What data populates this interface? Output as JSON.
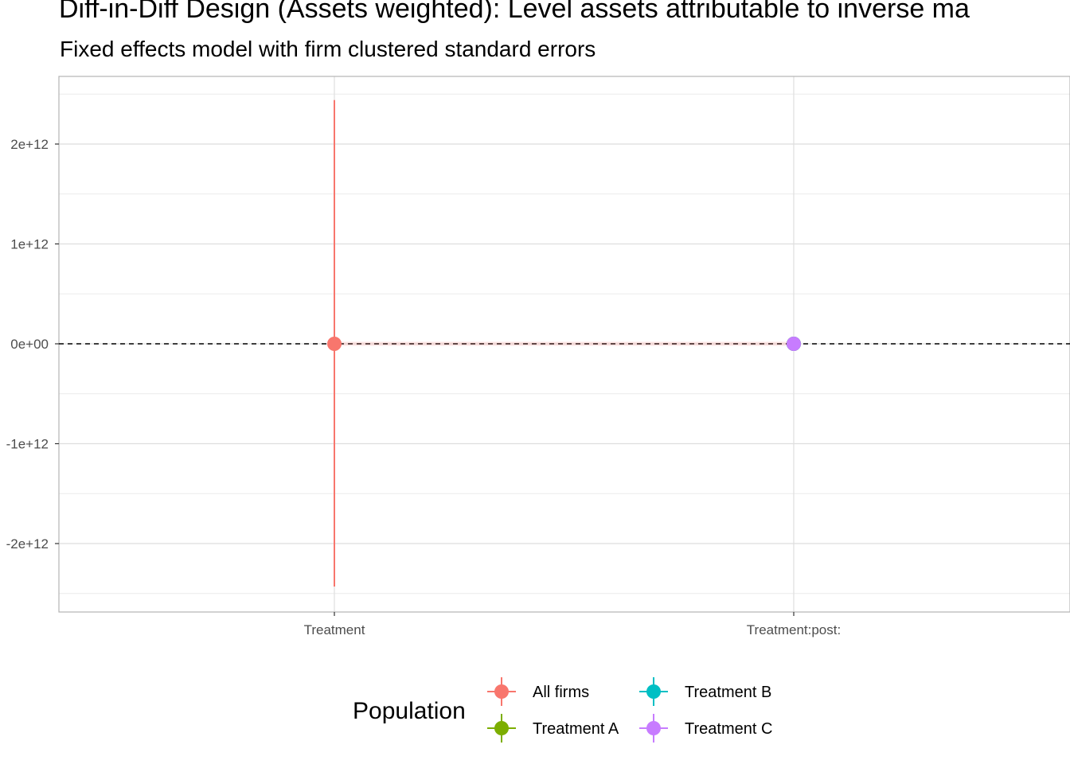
{
  "chart_data": {
    "type": "scatter",
    "title": "Diff-in-Diff Design (Assets weighted): Level assets attributable to inverse ma",
    "subtitle": "Fixed effects model with firm clustered standard errors",
    "xlabel": "",
    "ylabel": "",
    "categories": [
      "Treatment",
      "Treatment:post:"
    ],
    "ylim": [
      -2500000000000.0,
      2600000000000.0
    ],
    "y_ticks": [
      {
        "value": 2000000000000.0,
        "label": "2e+12"
      },
      {
        "value": 1000000000000.0,
        "label": "1e+12"
      },
      {
        "value": 0,
        "label": "0e+00"
      },
      {
        "value": -1000000000000.0,
        "label": "-1e+12"
      },
      {
        "value": -2000000000000.0,
        "label": "-2e+12"
      }
    ],
    "reference_line": {
      "value": 0,
      "style": "dashed"
    },
    "grid": true,
    "legend": {
      "title": "Population",
      "position": "bottom",
      "entries": [
        "All firms",
        "Treatment A",
        "Treatment B",
        "Treatment C"
      ]
    },
    "series": [
      {
        "name": "All firms",
        "color": "#F8766D",
        "points": [
          {
            "category": "Treatment",
            "estimate": 0,
            "low": -2430000000000.0,
            "high": 2440000000000.0
          },
          {
            "category": "Treatment:post:",
            "estimate": 0,
            "low": 0,
            "high": 0
          }
        ]
      },
      {
        "name": "Treatment A",
        "color": "#7CAE00",
        "points": [
          {
            "category": "Treatment:post:",
            "estimate": 0,
            "low": 0,
            "high": 0
          }
        ]
      },
      {
        "name": "Treatment B",
        "color": "#00BFC4",
        "points": [
          {
            "category": "Treatment:post:",
            "estimate": 0,
            "low": 0,
            "high": 0
          }
        ]
      },
      {
        "name": "Treatment C",
        "color": "#C77CFF",
        "points": [
          {
            "category": "Treatment:post:",
            "estimate": 0,
            "low": 0,
            "high": 0
          }
        ]
      }
    ]
  }
}
